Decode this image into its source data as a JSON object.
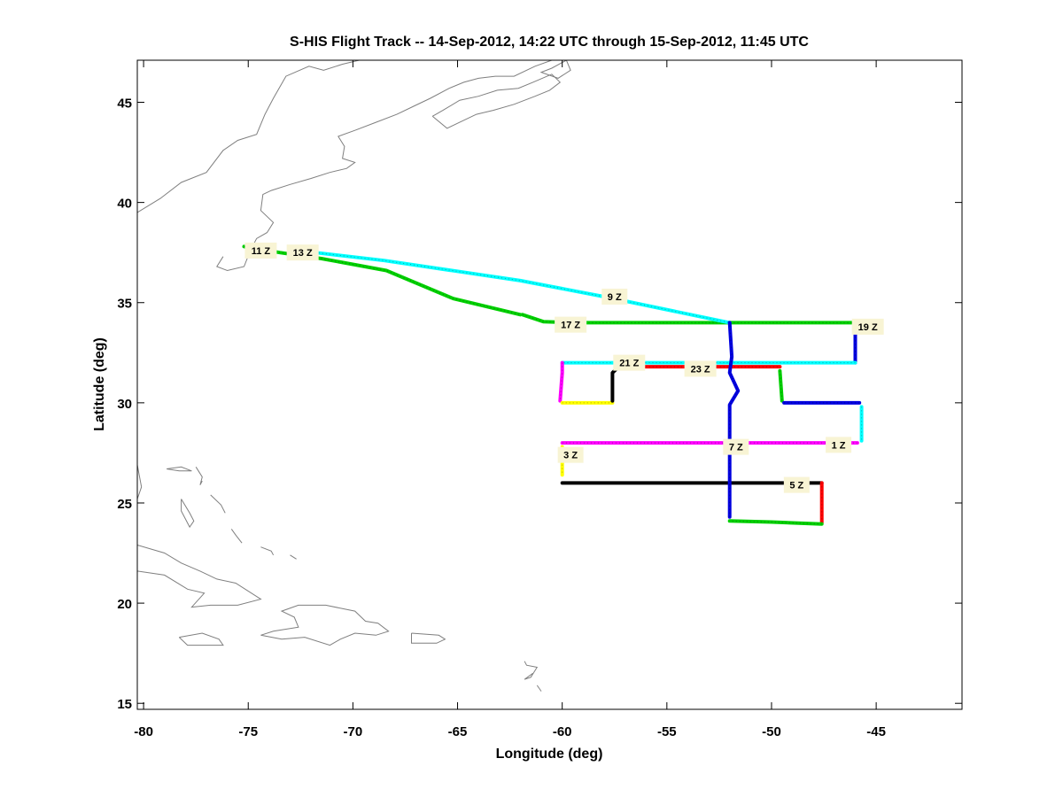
{
  "chart_data": {
    "type": "line",
    "title": "S-HIS Flight Track -- 14-Sep-2012, 14:22 UTC through 15-Sep-2012, 11:45 UTC",
    "xlabel": "Longitude (deg)",
    "ylabel": "Latitude (deg)",
    "xlim": [
      -80.3,
      -40.9
    ],
    "ylim": [
      14.7,
      47.1
    ],
    "xticks": [
      -80,
      -75,
      -70,
      -65,
      -60,
      -55,
      -50,
      -45
    ],
    "yticks": [
      15,
      20,
      25,
      30,
      35,
      40,
      45
    ],
    "grid": false,
    "legend": "none",
    "coastline_color": "#7f7f7f",
    "coastlines": [
      [
        [
          -80.3,
          39.5
        ],
        [
          -79.2,
          40.2
        ],
        [
          -78.2,
          41.0
        ],
        [
          -77.0,
          41.5
        ],
        [
          -76.2,
          42.6
        ],
        [
          -75.5,
          43.1
        ],
        [
          -74.6,
          43.4
        ],
        [
          -74.2,
          44.4
        ],
        [
          -73.8,
          45.2
        ],
        [
          -73.2,
          46.3
        ],
        [
          -72.1,
          46.8
        ],
        [
          -71.4,
          46.6
        ],
        [
          -70.5,
          46.9
        ],
        [
          -69.7,
          47.1
        ]
      ],
      [
        [
          -76.2,
          37.3
        ],
        [
          -76.5,
          36.8
        ],
        [
          -76.0,
          36.6
        ],
        [
          -75.2,
          36.8
        ],
        [
          -74.9,
          37.6
        ],
        [
          -74.6,
          38.2
        ],
        [
          -74.1,
          38.5
        ],
        [
          -73.8,
          39.0
        ],
        [
          -74.4,
          39.6
        ],
        [
          -74.3,
          40.4
        ],
        [
          -73.9,
          40.6
        ],
        [
          -73.0,
          40.9
        ],
        [
          -72.0,
          41.2
        ],
        [
          -71.1,
          41.5
        ],
        [
          -70.3,
          41.7
        ],
        [
          -69.9,
          42.0
        ],
        [
          -70.5,
          42.2
        ],
        [
          -70.4,
          42.8
        ],
        [
          -70.7,
          43.3
        ],
        [
          -69.9,
          43.6
        ],
        [
          -68.9,
          44.0
        ],
        [
          -67.9,
          44.4
        ],
        [
          -67.1,
          44.8
        ],
        [
          -66.3,
          45.2
        ],
        [
          -65.4,
          45.7
        ],
        [
          -64.7,
          46.0
        ],
        [
          -64.0,
          46.2
        ],
        [
          -63.2,
          46.3
        ],
        [
          -62.3,
          46.3
        ],
        [
          -61.3,
          46.8
        ],
        [
          -60.5,
          47.1
        ]
      ],
      [
        [
          -66.2,
          44.3
        ],
        [
          -65.5,
          43.7
        ],
        [
          -64.9,
          44.0
        ],
        [
          -64.1,
          44.4
        ],
        [
          -63.3,
          44.6
        ],
        [
          -62.3,
          44.9
        ],
        [
          -61.3,
          45.3
        ],
        [
          -60.6,
          45.6
        ],
        [
          -60.1,
          46.0
        ],
        [
          -60.5,
          46.4
        ],
        [
          -61.4,
          46.0
        ],
        [
          -62.1,
          45.7
        ],
        [
          -63.1,
          45.6
        ],
        [
          -64.0,
          45.3
        ],
        [
          -64.9,
          45.1
        ],
        [
          -65.7,
          44.6
        ],
        [
          -66.2,
          44.3
        ]
      ],
      [
        [
          -59.8,
          47.1
        ],
        [
          -60.5,
          46.7
        ],
        [
          -61.0,
          46.5
        ],
        [
          -60.2,
          46.2
        ],
        [
          -59.6,
          46.6
        ],
        [
          -59.8,
          47.1
        ]
      ],
      [
        [
          -80.3,
          26.9
        ],
        [
          -80.1,
          25.8
        ],
        [
          -80.3,
          25.2
        ]
      ],
      [
        [
          -78.9,
          26.7
        ],
        [
          -78.3,
          26.6
        ],
        [
          -77.7,
          26.6
        ],
        [
          -78.2,
          26.8
        ],
        [
          -78.9,
          26.7
        ]
      ],
      [
        [
          -77.5,
          26.8
        ],
        [
          -77.2,
          26.3
        ],
        [
          -77.3,
          25.9
        ],
        [
          -77.2,
          26.1
        ]
      ],
      [
        [
          -78.2,
          25.2
        ],
        [
          -77.8,
          24.5
        ],
        [
          -77.6,
          24.1
        ],
        [
          -77.8,
          23.8
        ],
        [
          -78.2,
          24.6
        ],
        [
          -78.2,
          25.2
        ]
      ],
      [
        [
          -76.8,
          25.4
        ],
        [
          -76.3,
          24.9
        ],
        [
          -76.1,
          24.5
        ]
      ],
      [
        [
          -75.8,
          23.7
        ],
        [
          -75.6,
          23.4
        ],
        [
          -75.3,
          23.0
        ]
      ],
      [
        [
          -74.4,
          22.8
        ],
        [
          -73.9,
          22.6
        ],
        [
          -73.8,
          22.4
        ]
      ],
      [
        [
          -73.0,
          22.4
        ],
        [
          -72.7,
          22.2
        ]
      ],
      [
        [
          -80.3,
          22.9
        ],
        [
          -79.0,
          22.5
        ],
        [
          -78.2,
          22.0
        ],
        [
          -77.3,
          21.6
        ],
        [
          -76.5,
          21.2
        ],
        [
          -75.6,
          21.0
        ],
        [
          -74.4,
          20.2
        ],
        [
          -75.5,
          19.9
        ],
        [
          -76.8,
          19.9
        ],
        [
          -77.7,
          19.8
        ],
        [
          -77.1,
          20.5
        ],
        [
          -77.9,
          20.7
        ],
        [
          -79.0,
          21.4
        ],
        [
          -80.3,
          21.6
        ]
      ],
      [
        [
          -78.3,
          18.3
        ],
        [
          -77.9,
          17.9
        ],
        [
          -76.8,
          17.9
        ],
        [
          -76.2,
          17.9
        ],
        [
          -76.4,
          18.2
        ],
        [
          -77.2,
          18.5
        ],
        [
          -78.3,
          18.3
        ]
      ],
      [
        [
          -74.4,
          18.4
        ],
        [
          -73.4,
          18.2
        ],
        [
          -72.3,
          18.3
        ],
        [
          -71.1,
          17.9
        ],
        [
          -70.6,
          18.2
        ],
        [
          -69.9,
          18.5
        ],
        [
          -68.9,
          18.4
        ],
        [
          -68.3,
          18.6
        ],
        [
          -68.8,
          19.0
        ],
        [
          -69.4,
          19.1
        ],
        [
          -69.9,
          19.6
        ],
        [
          -71.3,
          19.9
        ],
        [
          -72.6,
          19.9
        ],
        [
          -73.4,
          19.6
        ],
        [
          -72.8,
          19.3
        ],
        [
          -72.6,
          18.8
        ],
        [
          -73.8,
          18.6
        ],
        [
          -74.4,
          18.4
        ]
      ],
      [
        [
          -67.2,
          18.5
        ],
        [
          -65.9,
          18.4
        ],
        [
          -65.6,
          18.2
        ],
        [
          -66.0,
          18.0
        ],
        [
          -67.2,
          18.0
        ],
        [
          -67.2,
          18.5
        ]
      ],
      [
        [
          -61.8,
          17.1
        ],
        [
          -61.7,
          16.9
        ],
        [
          -61.2,
          16.8
        ],
        [
          -61.5,
          16.3
        ],
        [
          -61.8,
          16.2
        ],
        [
          -61.4,
          16.5
        ]
      ],
      [
        [
          -61.2,
          15.9
        ],
        [
          -61.0,
          15.6
        ]
      ]
    ],
    "series": [
      {
        "color": "#00d000",
        "points": [
          [
            -75.2,
            37.8
          ],
          [
            -73.5,
            37.5
          ],
          [
            -71.5,
            37.2
          ],
          [
            -68.4,
            36.6
          ],
          [
            -65.2,
            35.2
          ],
          [
            -62.0,
            34.4
          ]
        ]
      },
      {
        "color": "#00d000",
        "points": [
          [
            -61.9,
            34.4
          ],
          [
            -60.9,
            34.05
          ],
          [
            -59.5,
            34.0
          ],
          [
            -52.0,
            34.0
          ],
          [
            -45.9,
            34.0
          ]
        ]
      },
      {
        "color": "#00ffff",
        "points": [
          [
            -71.8,
            37.5
          ],
          [
            -68.5,
            37.1
          ],
          [
            -62.0,
            36.1
          ],
          [
            -58.0,
            35.3
          ],
          [
            -52.0,
            34.0
          ]
        ]
      },
      {
        "color": "#0000e0",
        "points": [
          [
            -46.0,
            34.0
          ],
          [
            -46.0,
            33.5
          ],
          [
            -46.0,
            32.0
          ]
        ]
      },
      {
        "color": "#00ffff",
        "points": [
          [
            -46.0,
            32.0
          ],
          [
            -52.0,
            32.0
          ],
          [
            -55.0,
            32.0
          ],
          [
            -60.0,
            32.0
          ]
        ]
      },
      {
        "color": "#ff00ff",
        "points": [
          [
            -60.0,
            32.0
          ],
          [
            -60.0,
            31.5
          ],
          [
            -60.1,
            30.1
          ]
        ]
      },
      {
        "color": "#ffff00",
        "points": [
          [
            -60.0,
            30.0
          ],
          [
            -57.6,
            30.0
          ]
        ]
      },
      {
        "color": "#000000",
        "points": [
          [
            -57.6,
            30.1
          ],
          [
            -57.6,
            31.5
          ],
          [
            -57.4,
            31.7
          ]
        ]
      },
      {
        "color": "#ff0000",
        "points": [
          [
            -57.2,
            31.8
          ],
          [
            -55.0,
            31.8
          ],
          [
            -52.0,
            31.8
          ],
          [
            -49.6,
            31.8
          ]
        ]
      },
      {
        "color": "#00d000",
        "points": [
          [
            -49.6,
            31.6
          ],
          [
            -49.5,
            30.1
          ]
        ]
      },
      {
        "color": "#0000e0",
        "points": [
          [
            -49.4,
            30.0
          ],
          [
            -45.8,
            30.0
          ]
        ]
      },
      {
        "color": "#00ffff",
        "points": [
          [
            -45.7,
            29.8
          ],
          [
            -45.7,
            28.1
          ]
        ]
      },
      {
        "color": "#ff00ff",
        "points": [
          [
            -45.9,
            28.0
          ],
          [
            -52.0,
            28.0
          ],
          [
            -56.0,
            28.0
          ],
          [
            -60.0,
            28.0
          ]
        ]
      },
      {
        "color": "#ffff00",
        "points": [
          [
            -60.0,
            27.8
          ],
          [
            -60.0,
            26.4
          ]
        ]
      },
      {
        "color": "#000000",
        "points": [
          [
            -60.0,
            26.0
          ],
          [
            -52.0,
            26.0
          ],
          [
            -47.6,
            26.0
          ]
        ]
      },
      {
        "color": "#ff0000",
        "points": [
          [
            -47.6,
            26.0
          ],
          [
            -47.6,
            24.0
          ]
        ]
      },
      {
        "color": "#00d000",
        "points": [
          [
            -47.6,
            23.95
          ],
          [
            -50.0,
            24.05
          ],
          [
            -52.0,
            24.1
          ]
        ]
      },
      {
        "color": "#0000e0",
        "points": [
          [
            -52.0,
            24.3
          ],
          [
            -52.0,
            26.5
          ],
          [
            -52.0,
            29.9
          ],
          [
            -51.6,
            30.6
          ],
          [
            -52.0,
            31.5
          ],
          [
            -51.9,
            32.3
          ],
          [
            -52.0,
            34.0
          ]
        ]
      }
    ],
    "annotations": [
      {
        "text": "11 Z",
        "x": -74.4,
        "y": 37.6
      },
      {
        "text": "13 Z",
        "x": -72.4,
        "y": 37.5
      },
      {
        "text": "9 Z",
        "x": -57.5,
        "y": 35.3
      },
      {
        "text": "17 Z",
        "x": -59.6,
        "y": 33.9
      },
      {
        "text": "19 Z",
        "x": -45.4,
        "y": 33.8
      },
      {
        "text": "21 Z",
        "x": -56.8,
        "y": 32.0
      },
      {
        "text": "23 Z",
        "x": -53.4,
        "y": 31.7
      },
      {
        "text": "7 Z",
        "x": -51.7,
        "y": 27.8
      },
      {
        "text": "1 Z",
        "x": -46.8,
        "y": 27.9
      },
      {
        "text": "3 Z",
        "x": -59.6,
        "y": 27.4
      },
      {
        "text": "5 Z",
        "x": -48.8,
        "y": 25.9
      }
    ]
  }
}
